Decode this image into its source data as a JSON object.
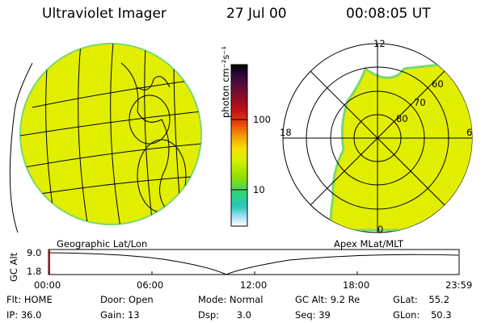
{
  "header": {
    "title": "Ultraviolet Imager",
    "date": "27 Jul 00",
    "time": "00:08:05 UT"
  },
  "geo_panel": {
    "label": "Geographic Lat/Lon"
  },
  "apex_panel": {
    "label": "Apex MLat/MLT",
    "mlt_labels": {
      "top": "12",
      "right": "6",
      "bottom": "0",
      "left": "18"
    },
    "lat_labels": [
      "60",
      "70",
      "80"
    ]
  },
  "colorbar": {
    "unit_label": "photon cm⁻²s⁻¹",
    "ticks": [
      "100",
      "10"
    ],
    "colors": [
      "#000000",
      "#3a0a40",
      "#7a0d2a",
      "#c0101a",
      "#e8400a",
      "#f59a00",
      "#f7e000",
      "#d0f000",
      "#8ee000",
      "#2fd080",
      "#28c8c0",
      "#a0e0f0",
      "#ffffff"
    ]
  },
  "altitude_plot": {
    "ylabel": "GC Alt",
    "y_ticks": [
      "9.0",
      "1.8"
    ],
    "x_ticks": [
      "00:00",
      "06:00",
      "12:00",
      "18:00",
      "23:59"
    ]
  },
  "status": {
    "row1": [
      {
        "label": "Flt:",
        "value": "HOME"
      },
      {
        "label": "Door:",
        "value": "Open"
      },
      {
        "label": "Mode:",
        "value": "Normal"
      },
      {
        "label": "GC Alt:",
        "value": "9.2 Re"
      },
      {
        "label": "GLat:",
        "value": "55.2"
      }
    ],
    "row2": [
      {
        "label": "IP:",
        "value": "36.0"
      },
      {
        "label": "Gain:",
        "value": "13"
      },
      {
        "label": "Dsp:",
        "value": "3.0"
      },
      {
        "label": "Seq:",
        "value": "39"
      },
      {
        "label": "GLon:",
        "value": "50.3"
      }
    ]
  },
  "colors": {
    "image_fill": "#e2ee00",
    "image_edge": "#7ad870"
  }
}
